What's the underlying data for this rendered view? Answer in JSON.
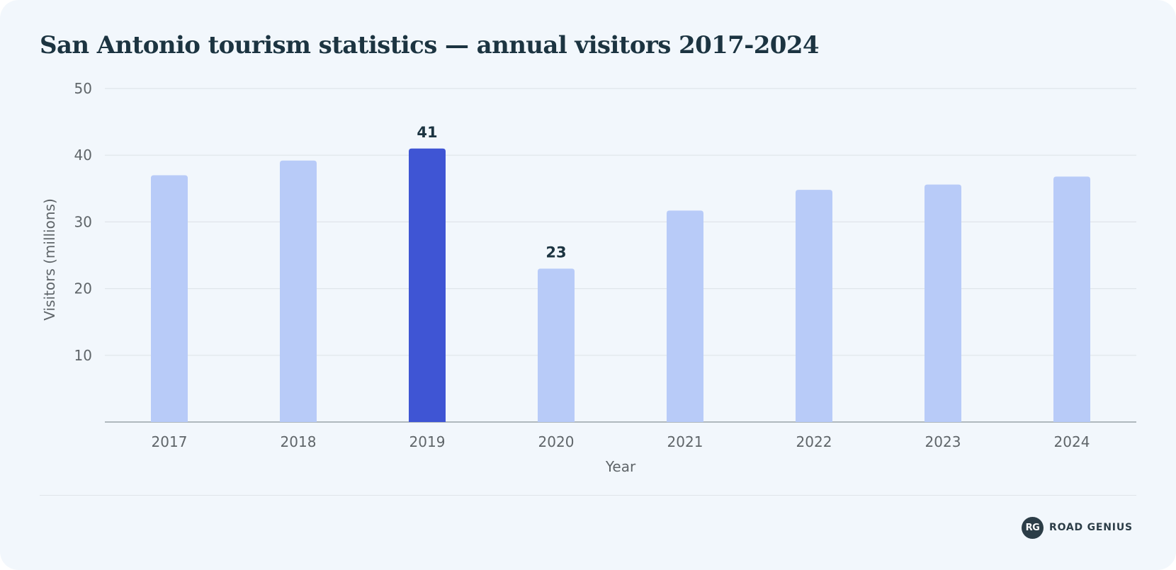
{
  "title": "San Antonio tourism statistics — annual visitors 2017-2024",
  "chart_data": {
    "type": "bar",
    "categories": [
      "2017",
      "2018",
      "2019",
      "2020",
      "2021",
      "2022",
      "2023",
      "2024"
    ],
    "values": [
      37,
      39.2,
      41,
      23,
      31.7,
      34.8,
      35.6,
      36.8
    ],
    "data_labels": {
      "2019": "41",
      "2020": "23"
    },
    "highlight_category": "2019",
    "xlabel": "Year",
    "ylabel": "Visitors (millions)",
    "ylim": [
      0,
      50
    ],
    "yticks": [
      10,
      20,
      30,
      40,
      50
    ],
    "grid": true,
    "colors": {
      "bar": "#b8cbf8",
      "highlight": "#3f55d4",
      "grid": "#dfe5ea",
      "axis": "#9aa3a8",
      "tick_text": "#5f6569",
      "label_text": "#1c3441"
    }
  },
  "brand": {
    "badge": "RG",
    "name": "ROAD GENIUS",
    "logo_icon": "road-genius-logo-icon"
  }
}
